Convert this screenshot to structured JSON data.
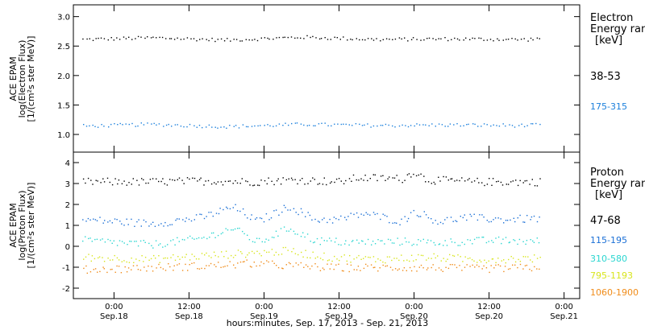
{
  "x_axis": {
    "label": "hours:minutes, Sep. 17, 2013 - Sep. 21, 2013",
    "ticks": [
      {
        "hour": 24,
        "time": "0:00",
        "date": "Sep.18"
      },
      {
        "hour": 36,
        "time": "12:00",
        "date": "Sep.18"
      },
      {
        "hour": 48,
        "time": "0:00",
        "date": "Sep.19"
      },
      {
        "hour": 60,
        "time": "12:00",
        "date": "Sep.19"
      },
      {
        "hour": 72,
        "time": "0:00",
        "date": "Sep.20"
      },
      {
        "hour": 84,
        "time": "12:00",
        "date": "Sep.20"
      },
      {
        "hour": 96,
        "time": "0:00",
        "date": "Sep.21"
      }
    ]
  },
  "chart_data": [
    {
      "type": "scatter",
      "panel": "electron",
      "ylabel_lines": [
        "ACE EPAM",
        "log(Electron Flux)",
        "[1/(cm²s ster MeV)]"
      ],
      "ylim": [
        0.7,
        3.2
      ],
      "yticks": [
        1.0,
        1.5,
        2.0,
        2.5,
        3.0
      ],
      "ytick_labels": [
        "1.0",
        "1.5",
        "2.0",
        "2.5",
        "3.0"
      ],
      "x_range_hours": [
        17.5,
        98.5
      ],
      "legend_title": [
        "Electron",
        "Energy ran",
        "[keV]"
      ],
      "series": [
        {
          "name": "38-53",
          "color": "#000000",
          "x": [
            19.0,
            30.0,
            42.0,
            54.0,
            66.0,
            78.0,
            90.0,
            92.0
          ],
          "y": [
            2.62,
            2.65,
            2.61,
            2.66,
            2.62,
            2.63,
            2.62,
            2.64
          ]
        },
        {
          "name": "175-315",
          "color": "#1a7fdc",
          "x": [
            19.0,
            30.0,
            42.0,
            54.0,
            66.0,
            78.0,
            90.0,
            92.0
          ],
          "y": [
            1.15,
            1.18,
            1.14,
            1.18,
            1.16,
            1.17,
            1.16,
            1.17
          ]
        }
      ]
    },
    {
      "type": "scatter",
      "panel": "proton",
      "ylabel_lines": [
        "ACE EPAM",
        "log(Proton Flux)",
        "[1/(cm²s ster MeV)]"
      ],
      "ylim": [
        -2.5,
        4.5
      ],
      "yticks": [
        -2,
        -1,
        0,
        1,
        2,
        3,
        4
      ],
      "ytick_labels": [
        "-2",
        "-1",
        "0",
        "1",
        "2",
        "3",
        "4"
      ],
      "x_range_hours": [
        17.5,
        98.5
      ],
      "legend_title": [
        "Proton",
        "Energy ran",
        "[keV]"
      ],
      "series": [
        {
          "name": "47-68",
          "color": "#000000",
          "x": [
            19.0,
            30.0,
            40.0,
            46.0,
            53.0,
            60.0,
            63.0,
            70.0,
            72.0,
            74.0,
            82.0,
            92.0
          ],
          "y": [
            3.1,
            3.1,
            3.15,
            3.1,
            3.2,
            3.1,
            3.3,
            3.25,
            3.6,
            3.2,
            3.1,
            3.1
          ]
        },
        {
          "name": "115-195",
          "color": "#1a6fd6",
          "x": [
            19.0,
            30.0,
            38.0,
            43.0,
            47.0,
            52.0,
            56.0,
            60.0,
            64.0,
            70.0,
            72.0,
            76.0,
            80.0,
            86.0,
            92.0
          ],
          "y": [
            1.3,
            1.1,
            1.4,
            1.9,
            1.2,
            1.95,
            1.3,
            1.3,
            1.6,
            1.2,
            1.7,
            1.2,
            1.4,
            1.3,
            1.35
          ]
        },
        {
          "name": "310-580",
          "color": "#2ad6d0",
          "x": [
            19.0,
            30.0,
            38.0,
            43.0,
            47.0,
            52.0,
            56.0,
            62.0,
            70.0,
            76.0,
            84.0,
            92.0
          ],
          "y": [
            0.3,
            0.1,
            0.4,
            0.9,
            0.2,
            0.9,
            0.3,
            0.2,
            0.25,
            0.2,
            0.3,
            0.25
          ]
        },
        {
          "name": "795-1193",
          "color": "#d8e51c",
          "x": [
            19.0,
            30.0,
            40.0,
            46.0,
            52.0,
            58.0,
            66.0,
            74.0,
            82.0,
            92.0
          ],
          "y": [
            -0.5,
            -0.6,
            -0.4,
            -0.3,
            -0.2,
            -0.5,
            -0.6,
            -0.5,
            -0.6,
            -0.55
          ]
        },
        {
          "name": "1060-1900",
          "color": "#f08c1a",
          "x": [
            19.0,
            30.0,
            40.0,
            46.0,
            52.0,
            58.0,
            66.0,
            74.0,
            82.0,
            92.0
          ],
          "y": [
            -1.1,
            -1.0,
            -0.9,
            -0.8,
            -0.9,
            -1.0,
            -1.0,
            -1.0,
            -1.05,
            -1.0
          ]
        }
      ]
    }
  ]
}
